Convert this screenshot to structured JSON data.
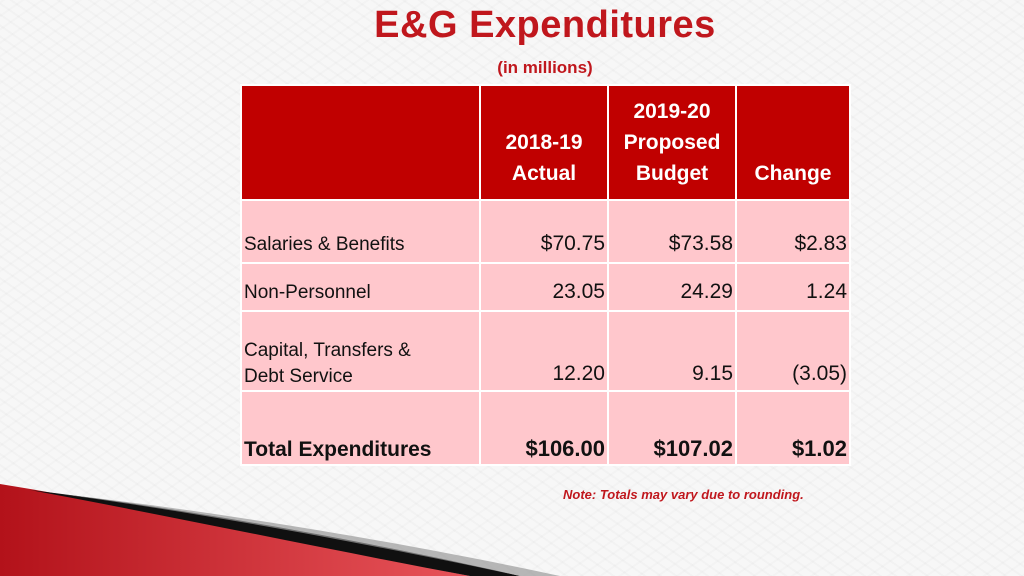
{
  "title": "E&G Expenditures",
  "subtitle": "(in millions)",
  "table": {
    "headers": [
      {
        "lines": [
          ""
        ]
      },
      {
        "lines": [
          "2018-19",
          "Actual"
        ]
      },
      {
        "lines": [
          "2019-20",
          "Proposed",
          "Budget"
        ]
      },
      {
        "lines": [
          "Change"
        ]
      }
    ],
    "rows": [
      {
        "label_lines": [
          "Salaries & Benefits"
        ],
        "actual": "$70.75",
        "budget": "$73.58",
        "change": "$2.83"
      },
      {
        "label_lines": [
          "Non-Personnel"
        ],
        "actual": "23.05",
        "budget": "24.29",
        "change": "1.24"
      },
      {
        "label_lines": [
          "Capital, Transfers &",
          "Debt Service"
        ],
        "actual": "12.20",
        "budget": "9.15",
        "change": "(3.05)"
      },
      {
        "label_lines": [
          "Total Expenditures"
        ],
        "actual": "$106.00",
        "budget": "$107.02",
        "change": "$1.02"
      }
    ]
  },
  "note": "Note: Totals may vary due to rounding.",
  "colors": {
    "accent": "#c0171d",
    "header_fill": "#c00000",
    "row_fill": "#ffc7cc"
  }
}
